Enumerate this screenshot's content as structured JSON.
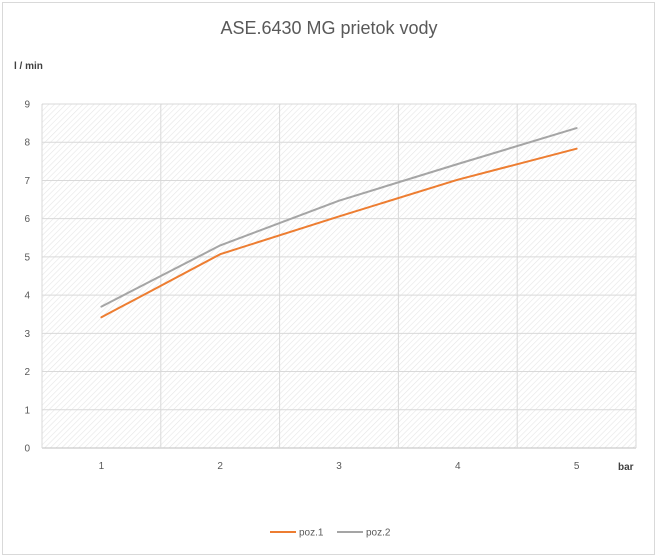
{
  "chart_data": {
    "type": "line",
    "title": "ASE.6430 MG  prietok vody",
    "ylabel": "l / min",
    "xlabel": "bar",
    "categories": [
      "1",
      "2",
      "3",
      "4",
      "5"
    ],
    "ylim": [
      0,
      9
    ],
    "yticks": [
      "0",
      "1",
      "2",
      "3",
      "4",
      "5",
      "6",
      "7",
      "8",
      "9"
    ],
    "grid": true,
    "legend_position": "bottom",
    "series": [
      {
        "name": "poz.1",
        "color": "#ed7d31",
        "values": [
          3.42,
          5.07,
          6.06,
          7.02,
          7.83
        ]
      },
      {
        "name": "poz.2",
        "color": "#a5a5a5",
        "values": [
          3.7,
          5.3,
          6.47,
          7.43,
          8.37
        ]
      }
    ]
  }
}
